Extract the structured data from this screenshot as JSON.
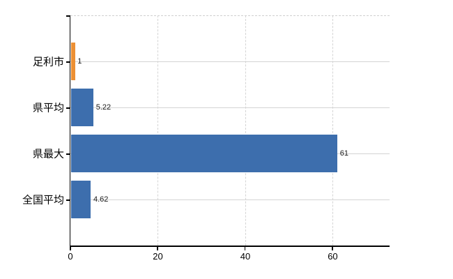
{
  "chart_data": {
    "type": "bar",
    "orientation": "horizontal",
    "title": "",
    "xlabel": "",
    "ylabel": "",
    "categories": [
      "足利市",
      "県平均",
      "県最大",
      "全国平均"
    ],
    "values": [
      1,
      5.22,
      61,
      4.62
    ],
    "value_labels": [
      "1",
      "5.22",
      "61",
      "4.62"
    ],
    "bar_colors": [
      "#ec9034",
      "#3d6ead",
      "#3d6ead",
      "#3d6ead"
    ],
    "highlight_category": "足利市",
    "xlim": [
      0,
      73
    ],
    "x_ticks": [
      0,
      20,
      40,
      60
    ],
    "grid": true,
    "legend_position": "none"
  },
  "colors": {
    "bar_blue": "#3d6ead",
    "bar_orange": "#ec9034",
    "gridline": "#d4d4d4",
    "axis": "#000000",
    "text": "#000000",
    "background": "#ffffff"
  }
}
